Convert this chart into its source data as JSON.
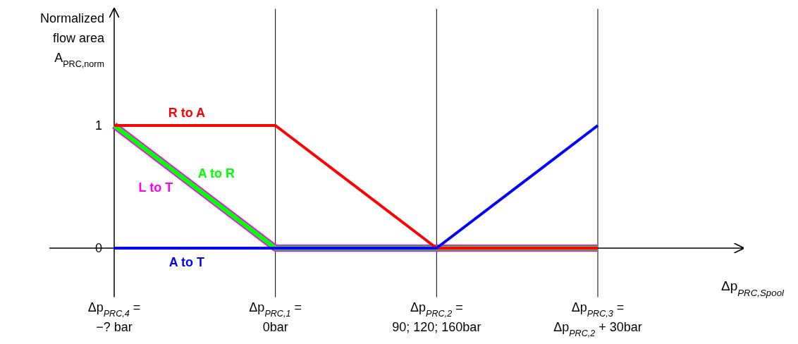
{
  "chart_data": {
    "type": "line",
    "xlabel": "Δp$_{PRC,Spool}$",
    "ylabel": "Normalized\nflow area\nA$_{PRC,norm}$",
    "categories": [
      "Δp$_{PRC,4}$ =\n−? bar",
      "Δp$_{PRC,1}$ =\n0bar",
      "Δp$_{PRC,2}$ =\n90; 120; 160bar",
      "Δp$_{PRC,3}$ =\nΔp$_{PRC,2}$ + 30bar"
    ],
    "series": [
      {
        "name": "R to A",
        "color": "#ff0000",
        "values": [
          1,
          1,
          0,
          0
        ]
      },
      {
        "name": "A to R",
        "color": "#00ff00",
        "values": [
          1,
          0,
          0,
          0
        ]
      },
      {
        "name": "L to T",
        "color": "#ff00ff",
        "values": [
          1,
          0,
          0,
          0
        ]
      },
      {
        "name": "A to T",
        "color": "#0000ff",
        "values": [
          0,
          0,
          0,
          1
        ]
      }
    ],
    "ylim": [
      -0.4,
      1.95
    ],
    "yticks": [
      0,
      1
    ],
    "grid": "x",
    "legend": false,
    "marker": "none",
    "line_style": "solid"
  }
}
